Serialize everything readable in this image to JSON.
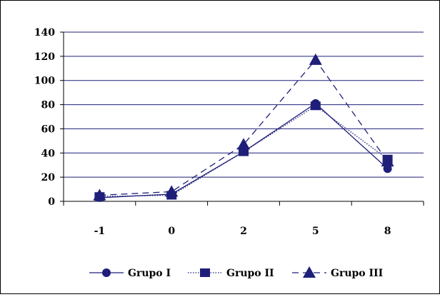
{
  "chart_data": {
    "type": "line",
    "title": "",
    "xlabel": "",
    "ylabel": "",
    "categories": [
      "-1",
      "0",
      "2",
      "5",
      "8"
    ],
    "ylim": [
      0,
      140
    ],
    "yticks": [
      0,
      20,
      40,
      60,
      80,
      100,
      120,
      140
    ],
    "grid": true,
    "legend_position": "bottom",
    "series": [
      {
        "name": "Grupo I",
        "values": [
          3,
          6,
          41,
          81,
          27
        ],
        "marker": "circle",
        "line_style": "solid",
        "color": "#1f1f7a"
      },
      {
        "name": "Grupo II",
        "values": [
          4,
          5,
          41,
          79,
          35
        ],
        "marker": "square",
        "line_style": "dotted",
        "color": "#1f1f7a"
      },
      {
        "name": "Grupo III",
        "values": [
          5,
          8,
          47,
          117,
          33
        ],
        "marker": "triangle",
        "line_style": "dashed",
        "color": "#1f1f7a"
      }
    ],
    "colors": {
      "axis": "#000000",
      "grid": "#1f1f7a",
      "series": "#1f1f7a"
    }
  }
}
